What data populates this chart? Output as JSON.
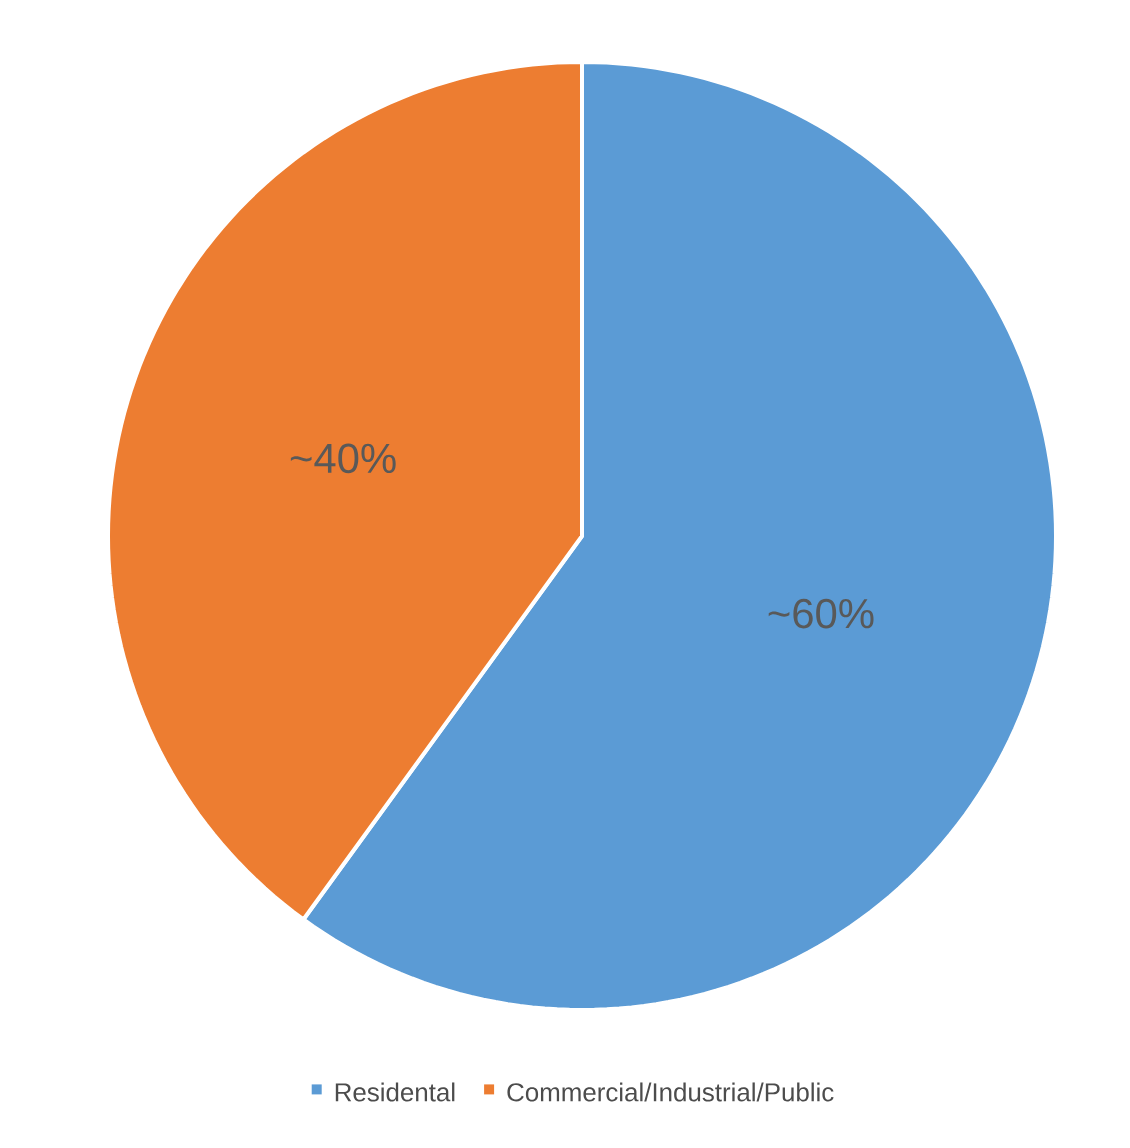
{
  "chart_data": {
    "type": "pie",
    "categories": [
      "Residental",
      "Commercial/Industrial/Public"
    ],
    "values": [
      60,
      40
    ],
    "colors": [
      "#5b9bd5",
      "#ed7d31"
    ],
    "value_labels": [
      "~60%",
      "~40%"
    ],
    "legend": "bottom"
  }
}
